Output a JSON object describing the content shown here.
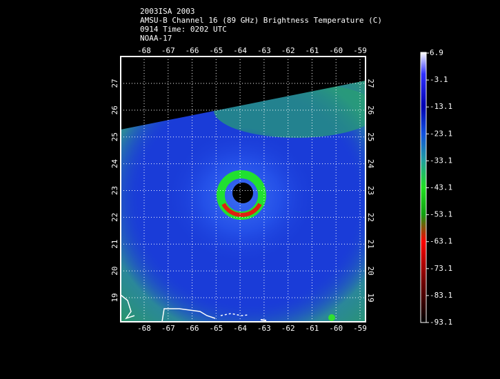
{
  "title_lines": [
    "2003ISA 2003",
    "AMSU-B Channel 16 (89 GHz) Brightness Temperature (C)",
    "0914 Time: 0202 UTC",
    "NOAA-17"
  ],
  "map": {
    "lon_ticks": [
      -68,
      -67,
      -66,
      -65,
      -64,
      -63,
      -62,
      -61,
      -60,
      -59
    ],
    "lat_ticks": [
      19,
      20,
      21,
      22,
      23,
      24,
      25,
      26,
      27
    ]
  },
  "colorbar": {
    "labels": [
      6.9,
      -3.1,
      -13.1,
      -23.1,
      -33.1,
      -43.1,
      -53.1,
      -63.1,
      -73.1,
      -83.1,
      -93.1
    ]
  }
}
